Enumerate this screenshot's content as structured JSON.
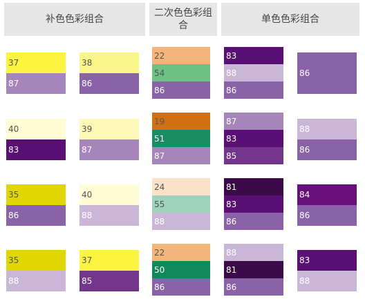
{
  "headers": {
    "complementary": "补色色彩组合",
    "secondary_line1": "二次色色彩组",
    "secondary_line2": "合",
    "monochrome": "单色色彩组合"
  },
  "colors": {
    "c19": "#d07010",
    "c22": "#f4b57a",
    "c24": "#fbe2c8",
    "c35": "#e0d600",
    "c37": "#fbf440",
    "c38": "#fbf68a",
    "c39": "#fdfab8",
    "c40": "#fffcd6",
    "c50": "#108a5c",
    "c51": "#1a8c62",
    "c54": "#6cc185",
    "c55": "#9ed4bc",
    "c81": "#3a0a48",
    "c83": "#5a0f74",
    "c84": "#680f7c",
    "c85": "#74368c",
    "c86": "#8a62a8",
    "c87": "#a686ba",
    "c88": "#cab6d6"
  },
  "swatches": {
    "comp_a": [
      [
        "37",
        "87"
      ],
      [
        "40",
        "83"
      ],
      [
        "35",
        "86"
      ],
      [
        "35",
        "88"
      ]
    ],
    "comp_b": [
      [
        "38",
        "86"
      ],
      [
        "39",
        "87"
      ],
      [
        "40",
        "88"
      ],
      [
        "37",
        "85"
      ]
    ],
    "secondary": [
      [
        "22",
        "54",
        "86"
      ],
      [
        "19",
        "51",
        "87"
      ],
      [
        "24",
        "55",
        "88"
      ],
      [
        "22",
        "50",
        "86"
      ]
    ],
    "mono_a": [
      [
        "83",
        "88",
        "86"
      ],
      [
        "87",
        "83",
        "85"
      ],
      [
        "81",
        "83",
        "86"
      ],
      [
        "88",
        "81",
        "86"
      ]
    ],
    "mono_b": [
      [
        "86"
      ],
      [
        "88",
        "86"
      ],
      [
        "84",
        "86"
      ],
      [
        "83",
        "88"
      ]
    ]
  }
}
